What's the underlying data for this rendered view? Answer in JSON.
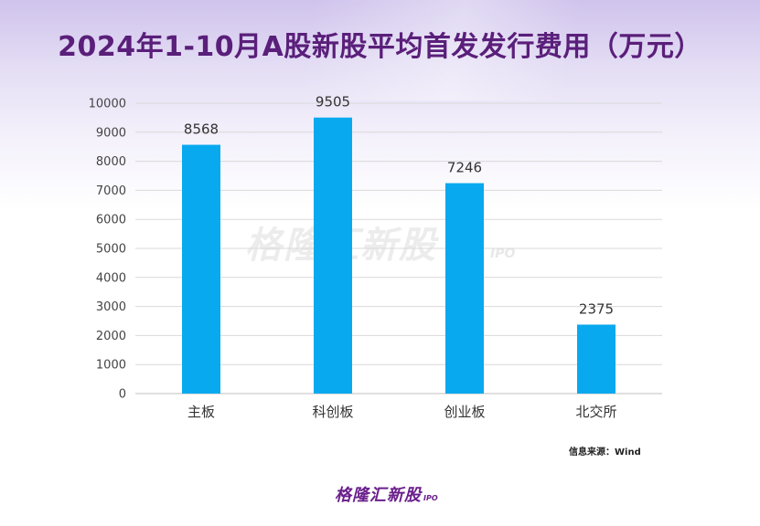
{
  "title": "2024年1-10月A股新股平均首发发行费用（万元）",
  "watermark": {
    "main": "格隆汇新股",
    "sub": "IPO"
  },
  "source": "信息来源：Wind",
  "logo": {
    "main": "格隆汇新股",
    "sub": "IPO"
  },
  "colors": {
    "bar": "#09a9ef",
    "title": "#5a1f7a",
    "logo": "#6a1f8c"
  },
  "chart_data": {
    "type": "bar",
    "title": "2024年1-10月A股新股平均首发发行费用（万元）",
    "categories": [
      "主板",
      "科创板",
      "创业板",
      "北交所"
    ],
    "values": [
      8568,
      9505,
      7246,
      2375
    ],
    "data_labels": [
      "8568",
      "9505",
      "7246",
      "2375"
    ],
    "ylim": [
      0,
      10000
    ],
    "yticks": [
      0,
      1000,
      2000,
      3000,
      4000,
      5000,
      6000,
      7000,
      8000,
      9000,
      10000
    ],
    "grid": true,
    "legend": "none",
    "xlabel": "",
    "ylabel": ""
  }
}
